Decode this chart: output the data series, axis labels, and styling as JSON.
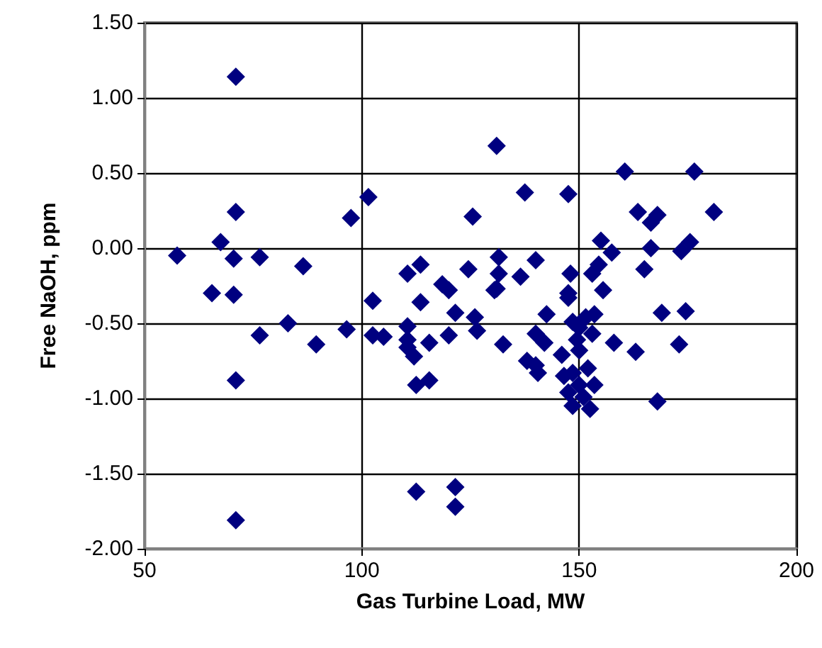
{
  "chart_data": {
    "type": "scatter",
    "xlabel": "Gas Turbine Load, MW",
    "ylabel": "Free NaOH, ppm",
    "marker": "diamond",
    "grid": true,
    "xlim": [
      50,
      200
    ],
    "xticks": [
      50,
      100,
      150,
      200
    ],
    "ylim": [
      -2,
      1.5
    ],
    "yticks": [
      {
        "value": -2,
        "label": "-2.00"
      },
      {
        "value": -1.5,
        "label": "-1.50"
      },
      {
        "value": -1,
        "label": "-1.00"
      },
      {
        "value": -0.5,
        "label": "-0.50"
      },
      {
        "value": 0,
        "label": "0.00"
      },
      {
        "value": 0.5,
        "label": "0.50"
      },
      {
        "value": 1,
        "label": "1.00"
      },
      {
        "value": 1.5,
        "label": "1.50"
      }
    ],
    "series": [
      {
        "color": "#000080",
        "x": [
          57.5,
          67.5,
          70.5,
          76.5,
          86.5,
          71,
          71,
          65.5,
          70.5,
          83,
          76.5,
          89.5,
          96.5,
          97.5,
          101.5,
          102.5,
          102.5,
          105,
          110.5,
          110.5,
          110.5,
          112,
          113.5,
          113.5,
          115.5,
          118.5,
          120,
          120,
          121.5,
          124.5,
          125.5,
          126,
          126.5,
          110.5,
          112.5,
          115.5,
          71,
          112.5,
          121.5,
          121.5,
          71,
          131,
          137.5,
          147.5,
          160.5,
          176.5,
          163.5,
          168,
          166.5,
          181,
          155,
          157.5,
          166.5,
          173.5,
          175.5,
          165,
          131.5,
          131.5,
          136.5,
          140,
          148,
          153,
          154.5,
          131,
          147.5,
          155.5,
          130.5,
          147.5,
          142.5,
          132.5,
          140,
          142,
          138,
          140.5,
          140,
          146,
          148.5,
          151.5,
          153.5,
          150,
          149.5,
          153,
          150,
          158,
          163,
          173,
          169,
          174.5,
          146.5,
          148.5,
          152,
          153.5,
          147.5,
          151,
          148.5,
          152.5,
          168,
          150
        ],
        "values": [
          -0.05,
          0.04,
          -0.07,
          -0.06,
          -0.12,
          0.24,
          1.14,
          -0.3,
          -0.31,
          -0.5,
          -0.58,
          -0.64,
          -0.54,
          0.2,
          0.34,
          -0.35,
          -0.58,
          -0.59,
          -0.17,
          -0.52,
          -0.61,
          -0.72,
          -0.11,
          -0.36,
          -0.63,
          -0.24,
          -0.28,
          -0.58,
          -0.43,
          -0.14,
          0.21,
          -0.46,
          -0.55,
          -0.66,
          -0.91,
          -0.88,
          -0.88,
          -1.62,
          -1.59,
          -1.72,
          -1.81,
          0.68,
          0.37,
          0.36,
          0.51,
          0.51,
          0.24,
          0.22,
          0.17,
          0.24,
          0.05,
          -0.03,
          0,
          -0.02,
          0.04,
          -0.14,
          -0.06,
          -0.17,
          -0.19,
          -0.08,
          -0.17,
          -0.17,
          -0.11,
          -0.27,
          -0.3,
          -0.28,
          -0.28,
          -0.33,
          -0.44,
          -0.64,
          -0.57,
          -0.63,
          -0.75,
          -0.83,
          -0.78,
          -0.71,
          -0.49,
          -0.46,
          -0.44,
          -0.53,
          -0.61,
          -0.57,
          -0.68,
          -0.63,
          -0.69,
          -0.64,
          -0.43,
          -0.42,
          -0.85,
          -0.83,
          -0.8,
          -0.91,
          -0.96,
          -0.99,
          -1.05,
          -1.07,
          -1.02,
          -0.91
        ]
      }
    ]
  }
}
